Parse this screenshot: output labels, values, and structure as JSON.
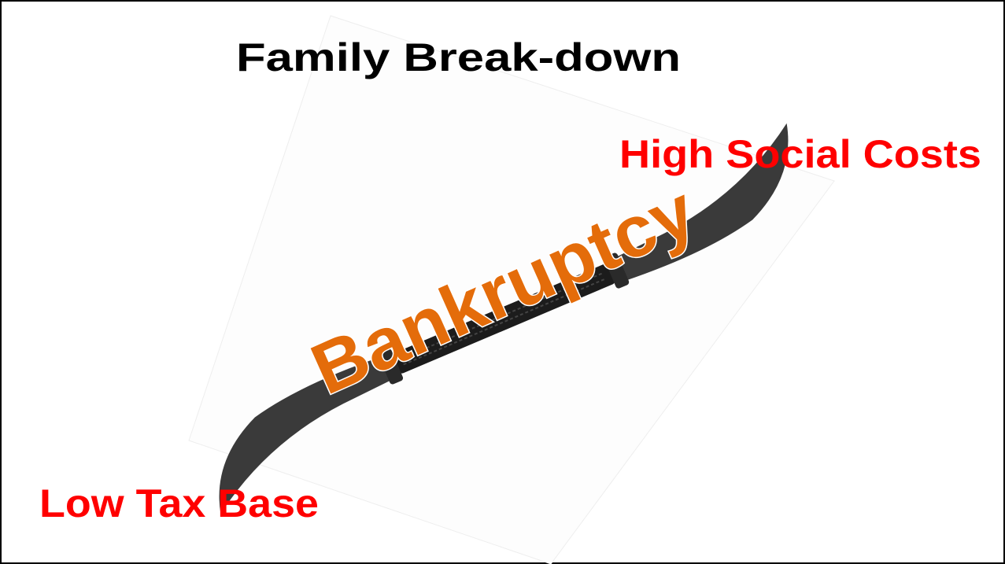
{
  "slide": {
    "title": "Family Break-down",
    "top_right": "High Social Costs",
    "bottom_left": "Low Tax Base",
    "overlay": "Bankruptcy"
  }
}
